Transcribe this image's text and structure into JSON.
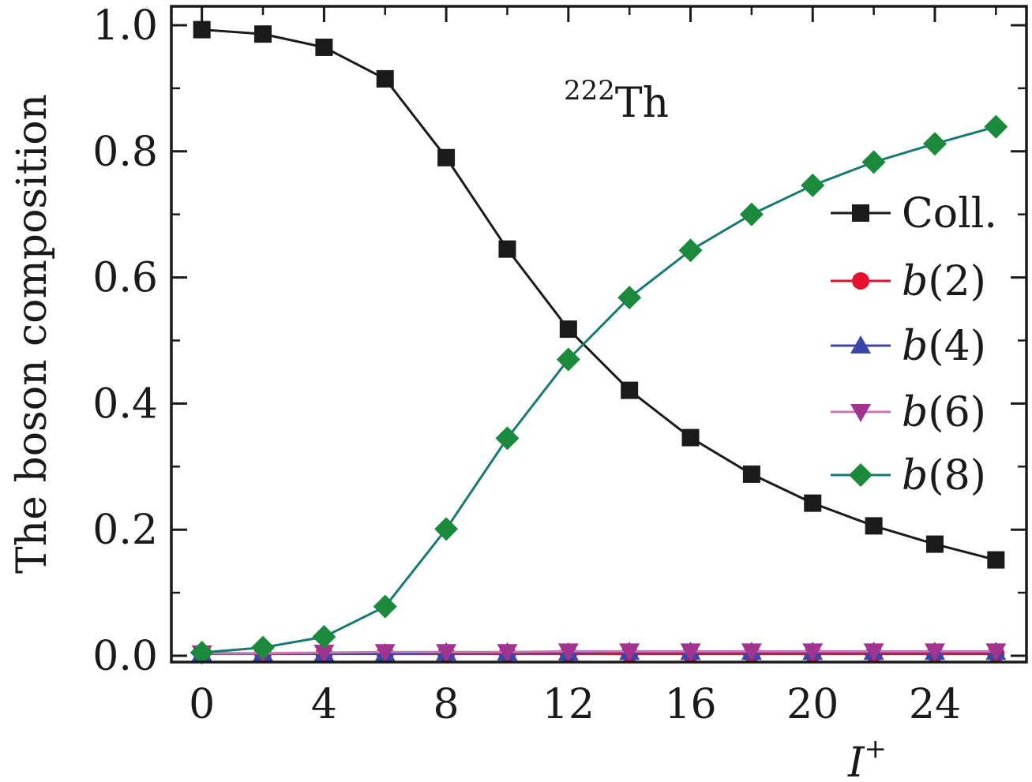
{
  "chart_data": {
    "type": "line",
    "annotation": {
      "mass": "222",
      "element": "Th"
    },
    "xlabel": {
      "main": "I",
      "sup": "+"
    },
    "ylabel": "The boson composition",
    "xlim": [
      -1,
      27
    ],
    "ylim": [
      -0.01,
      1.03
    ],
    "xticks": [
      0,
      4,
      8,
      12,
      16,
      20,
      24
    ],
    "xtick_labels": [
      "0",
      "4",
      "8",
      "12",
      "16",
      "20",
      "24"
    ],
    "yticks": [
      0.0,
      0.2,
      0.4,
      0.6,
      0.8,
      1.0
    ],
    "ytick_labels": [
      "0.0",
      "0.2",
      "0.4",
      "0.6",
      "0.8",
      "1.0"
    ],
    "x": [
      0,
      2,
      4,
      6,
      8,
      10,
      12,
      14,
      16,
      18,
      20,
      22,
      24,
      26
    ],
    "legend_position": "center-right",
    "series": [
      {
        "name": "Coll.",
        "marker": "square",
        "color": "#1a1a1a",
        "line_color": "#1a1a1a",
        "values": [
          0.993,
          0.986,
          0.965,
          0.915,
          0.79,
          0.645,
          0.518,
          0.421,
          0.346,
          0.288,
          0.242,
          0.206,
          0.177,
          0.152
        ]
      },
      {
        "name": "b(2)",
        "marker": "circle",
        "color": "#e8102e",
        "line_color": "#e8102e",
        "values": [
          0.003,
          0.003,
          0.003,
          0.003,
          0.003,
          0.003,
          0.003,
          0.003,
          0.003,
          0.003,
          0.003,
          0.003,
          0.003,
          0.003
        ]
      },
      {
        "name": "b(4)",
        "marker": "triangle-up",
        "color": "#3b46a8",
        "line_color": "#3b46a8",
        "values": [
          0.004,
          0.004,
          0.004,
          0.004,
          0.005,
          0.005,
          0.005,
          0.006,
          0.006,
          0.006,
          0.006,
          0.006,
          0.006,
          0.006
        ]
      },
      {
        "name": "b(6)",
        "marker": "triangle-down",
        "color": "#a0348e",
        "line_color": "#c27bb6",
        "values": [
          0.004,
          0.004,
          0.005,
          0.006,
          0.006,
          0.006,
          0.007,
          0.007,
          0.007,
          0.007,
          0.007,
          0.007,
          0.007,
          0.007
        ]
      },
      {
        "name": "b(8)",
        "marker": "diamond",
        "color": "#1b8a3c",
        "line_color": "#177a72",
        "values": [
          0.005,
          0.013,
          0.03,
          0.078,
          0.201,
          0.345,
          0.47,
          0.568,
          0.643,
          0.7,
          0.746,
          0.783,
          0.812,
          0.839
        ]
      }
    ]
  }
}
